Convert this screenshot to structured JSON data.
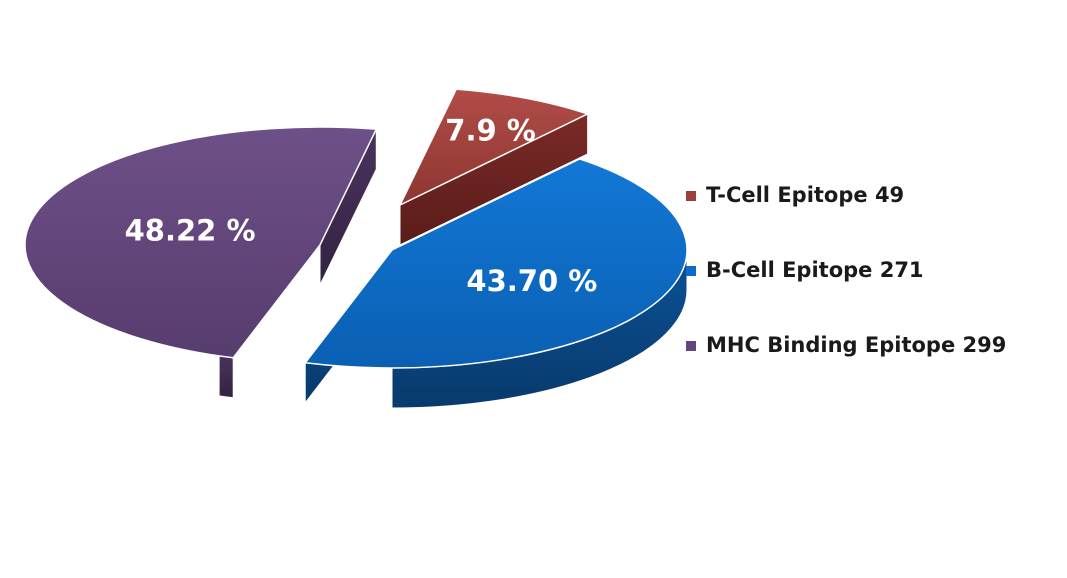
{
  "chart_data": {
    "type": "pie",
    "style": "3d-exploded",
    "categories": [
      "T-Cell Epitope",
      "B-Cell Epitope",
      "MHC Binding Epitope"
    ],
    "values": [
      49,
      271,
      299
    ],
    "percent_labels": [
      "7.9 %",
      "43.70 %",
      "48.22 %"
    ],
    "legend_labels": [
      "T-Cell Epitope 49",
      "B-Cell Epitope 271",
      "MHC Binding Epitope 299"
    ],
    "colors": {
      "top": [
        "#9c3f3b",
        "#0c6bc6",
        "#62457a"
      ],
      "side": [
        "#6e2421",
        "#0a4a88",
        "#3f2b52"
      ]
    },
    "legend_position": "right",
    "title": ""
  }
}
